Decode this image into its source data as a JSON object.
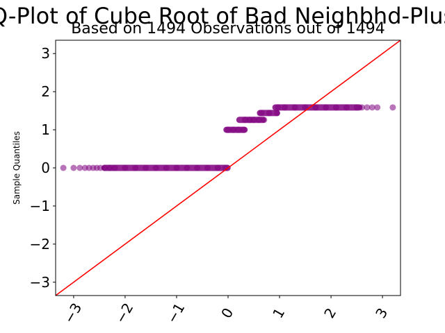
{
  "chart_data": {
    "type": "scatter",
    "title": "Q-Plot of Cube Root of Bad Neighbhd-Plus",
    "subtitle": "Based on 1494 Observations out of 1494",
    "xlabel": "",
    "ylabel": "Sample Quantiles",
    "xlim": [
      -3.35,
      3.35
    ],
    "ylim": [
      -3.35,
      3.35
    ],
    "xticks": [
      -3,
      -2,
      -1,
      0,
      1,
      2,
      3
    ],
    "xtick_labels": [
      "−3",
      "−2",
      "−1",
      "0",
      "1",
      "2",
      "3"
    ],
    "yticks": [
      -3,
      -2,
      -1,
      0,
      1,
      2,
      3
    ],
    "ytick_labels": [
      "−3",
      "−2",
      "−1",
      "0",
      "1",
      "2",
      "3"
    ],
    "grid": false,
    "marker_color": "#800080",
    "reference_line_color": "#ff0000",
    "reference_line": {
      "x": [
        -3.35,
        3.35
      ],
      "y": [
        -3.35,
        3.35
      ]
    },
    "series": [
      {
        "x": [
          -3.2,
          -3.0,
          -2.88,
          -2.78,
          -2.7,
          -2.62,
          -2.55,
          -2.48,
          -2.4,
          -2.3,
          -2.2,
          -2.0,
          -1.8,
          -1.6,
          -1.4,
          -1.2,
          -1.0,
          -0.8,
          -0.6,
          -0.4,
          -0.2,
          -0.05,
          0.0,
          0.1,
          0.2,
          0.3,
          0.33,
          0.42,
          0.5,
          0.6,
          0.7,
          0.65,
          0.8,
          0.95,
          0.97,
          1.1,
          1.3,
          1.5,
          1.7,
          1.9,
          2.1,
          2.3,
          2.5,
          2.6,
          2.7,
          2.8,
          2.9,
          3.2
        ],
        "y": [
          0.0,
          0.0,
          0.0,
          0.0,
          0.0,
          0.0,
          0.0,
          0.0,
          0.0,
          0.0,
          0.0,
          0.0,
          0.0,
          0.0,
          0.0,
          0.0,
          0.0,
          0.0,
          0.0,
          0.0,
          0.0,
          0.0,
          1.0,
          1.0,
          1.0,
          1.0,
          1.26,
          1.26,
          1.26,
          1.26,
          1.26,
          1.44,
          1.44,
          1.44,
          1.587,
          1.587,
          1.587,
          1.587,
          1.587,
          1.587,
          1.587,
          1.587,
          1.587,
          1.587,
          1.587,
          1.587,
          1.587,
          1.587
        ]
      }
    ],
    "dense_segments": [
      {
        "x0": -2.4,
        "x1": -0.01,
        "y": 0.0
      },
      {
        "x0": -0.03,
        "x1": 0.32,
        "y": 1.0
      },
      {
        "x0": 0.22,
        "x1": 0.68,
        "y": 1.26
      },
      {
        "x0": 0.62,
        "x1": 0.95,
        "y": 1.44
      },
      {
        "x0": 0.92,
        "x1": 2.55,
        "y": 1.587
      }
    ]
  }
}
